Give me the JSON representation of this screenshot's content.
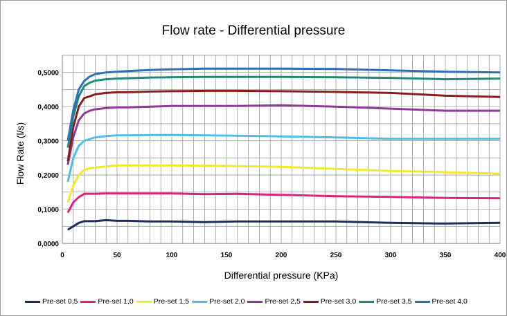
{
  "chart_data": {
    "type": "line",
    "title": "Flow rate - Differential pressure",
    "xlabel": "Differential pressure (KPa)",
    "ylabel": "Flow Rate (l/s)",
    "xlim": [
      0,
      400
    ],
    "ylim": [
      0,
      0.55
    ],
    "xticks": [
      {
        "value": 0,
        "label": "0"
      },
      {
        "value": 50,
        "label": "50"
      },
      {
        "value": 100,
        "label": "100"
      },
      {
        "value": 150,
        "label": "150"
      },
      {
        "value": 200,
        "label": "200"
      },
      {
        "value": 250,
        "label": "250"
      },
      {
        "value": 300,
        "label": "300"
      },
      {
        "value": 350,
        "label": "350"
      },
      {
        "value": 400,
        "label": "400"
      }
    ],
    "yticks": [
      {
        "value": 0,
        "label": "0,0000"
      },
      {
        "value": 0.1,
        "label": "0,1000"
      },
      {
        "value": 0.2,
        "label": "0,2000"
      },
      {
        "value": 0.3,
        "label": "0,3000"
      },
      {
        "value": 0.4,
        "label": "0,4000"
      },
      {
        "value": 0.5,
        "label": "0,5000"
      }
    ],
    "grid": true,
    "legend_position": "bottom",
    "x": [
      5,
      10,
      15,
      20,
      25,
      30,
      40,
      50,
      60,
      80,
      100,
      130,
      160,
      200,
      250,
      300,
      350,
      400
    ],
    "series": [
      {
        "name": "Pre-set 0,5",
        "color": "#1f2d5c",
        "values": [
          0.04,
          0.05,
          0.06,
          0.065,
          0.065,
          0.065,
          0.068,
          0.066,
          0.066,
          0.064,
          0.064,
          0.062,
          0.064,
          0.064,
          0.064,
          0.06,
          0.058,
          0.06
        ]
      },
      {
        "name": "Pre-set 1,0",
        "color": "#e0207a",
        "values": [
          0.09,
          0.12,
          0.135,
          0.145,
          0.145,
          0.145,
          0.146,
          0.146,
          0.146,
          0.146,
          0.146,
          0.144,
          0.145,
          0.142,
          0.138,
          0.136,
          0.133,
          0.132
        ]
      },
      {
        "name": "Pre-set 1,5",
        "color": "#f2ea2a",
        "values": [
          0.12,
          0.17,
          0.2,
          0.215,
          0.22,
          0.222,
          0.225,
          0.228,
          0.228,
          0.228,
          0.228,
          0.227,
          0.226,
          0.224,
          0.218,
          0.212,
          0.208,
          0.204
        ]
      },
      {
        "name": "Pre-set 2,0",
        "color": "#4fbde8",
        "values": [
          0.18,
          0.25,
          0.285,
          0.3,
          0.305,
          0.31,
          0.314,
          0.316,
          0.316,
          0.317,
          0.317,
          0.316,
          0.315,
          0.313,
          0.31,
          0.306,
          0.306,
          0.306
        ]
      },
      {
        "name": "Pre-set 2,5",
        "color": "#8e3a96",
        "values": [
          0.23,
          0.31,
          0.36,
          0.38,
          0.388,
          0.392,
          0.396,
          0.398,
          0.398,
          0.4,
          0.402,
          0.402,
          0.402,
          0.404,
          0.4,
          0.394,
          0.388,
          0.388
        ]
      },
      {
        "name": "Pre-set 3,0",
        "color": "#8b1c1c",
        "values": [
          0.24,
          0.34,
          0.4,
          0.425,
          0.43,
          0.436,
          0.44,
          0.442,
          0.442,
          0.444,
          0.445,
          0.446,
          0.446,
          0.445,
          0.443,
          0.44,
          0.432,
          0.428
        ]
      },
      {
        "name": "Pre-set 3,5",
        "color": "#1f8a78",
        "values": [
          0.28,
          0.37,
          0.43,
          0.46,
          0.47,
          0.476,
          0.48,
          0.482,
          0.483,
          0.485,
          0.486,
          0.487,
          0.487,
          0.487,
          0.486,
          0.484,
          0.48,
          0.482
        ]
      },
      {
        "name": "Pre-set 4,0",
        "color": "#2e6fba",
        "values": [
          0.3,
          0.39,
          0.45,
          0.475,
          0.488,
          0.495,
          0.5,
          0.502,
          0.504,
          0.507,
          0.509,
          0.511,
          0.511,
          0.511,
          0.51,
          0.506,
          0.502,
          0.5
        ]
      }
    ]
  }
}
